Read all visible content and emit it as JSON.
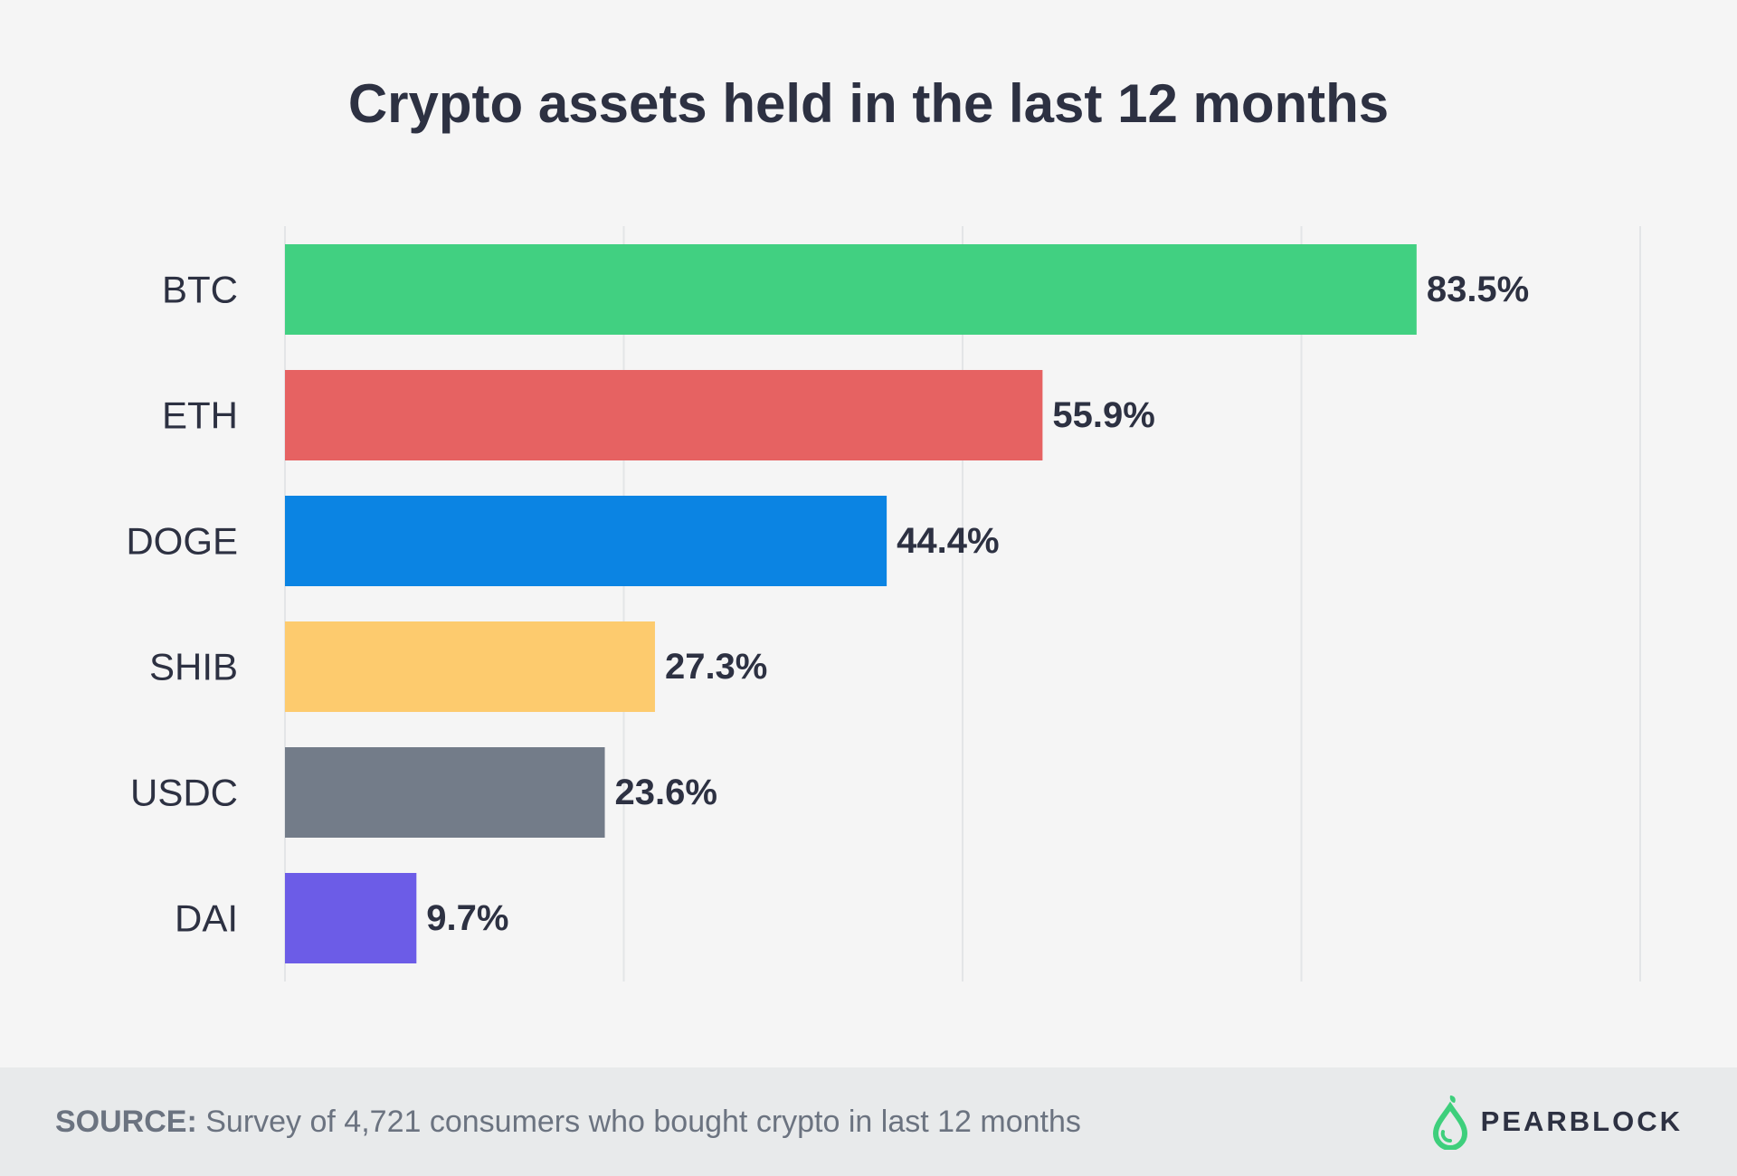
{
  "footer": {
    "source_label": "SOURCE:",
    "source_text": " Survey of 4,721 consumers who bought crypto in last 12 months",
    "brand": "PEARBLOCK",
    "brand_icon": "pear-drop-icon",
    "brand_color": "#3ecf7c"
  },
  "chart_data": {
    "type": "bar",
    "orientation": "horizontal",
    "title": "Crypto assets held in the last 12 months",
    "xlabel": "",
    "ylabel": "",
    "xlim": [
      0,
      100
    ],
    "grid": true,
    "categories": [
      "BTC",
      "ETH",
      "DOGE",
      "SHIB",
      "USDC",
      "DAI"
    ],
    "values": [
      83.5,
      55.9,
      44.4,
      27.3,
      23.6,
      9.7
    ],
    "value_labels": [
      "83.5%",
      "55.9%",
      "44.4%",
      "27.3%",
      "23.6%",
      "9.7%"
    ],
    "colors": [
      "#41d081",
      "#e66262",
      "#0b84e3",
      "#fdcb6e",
      "#737c89",
      "#6c5ce7"
    ]
  }
}
